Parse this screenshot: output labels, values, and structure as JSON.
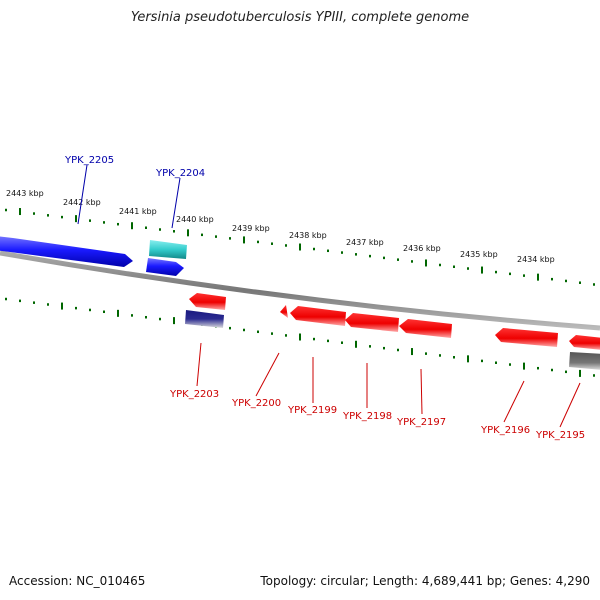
{
  "title": "Yersinia pseudotuberculosis YPIII, complete genome",
  "accession": "Accession: NC_010465",
  "topology": "Topology: circular; Length: 4,689,441 bp; Genes: 4,290",
  "colors": {
    "forward_gene": "#1a1aff",
    "reverse_gene": "#ff1a1a",
    "rna_forward": "#33cccc",
    "rna_reverse": "#1a1a80",
    "other_gene": "#666666",
    "ticks": "#006600",
    "backbone": "#777777"
  },
  "scale_ticks": [
    {
      "label": "2443 kbp"
    },
    {
      "label": "2442 kbp"
    },
    {
      "label": "2441 kbp"
    },
    {
      "label": "2440 kbp"
    },
    {
      "label": "2439 kbp"
    },
    {
      "label": "2438 kbp"
    },
    {
      "label": "2437 kbp"
    },
    {
      "label": "2436 kbp"
    },
    {
      "label": "2435 kbp"
    },
    {
      "label": "2434 kbp"
    }
  ],
  "forward_labels": [
    {
      "label": "YPK_2205"
    },
    {
      "label": "YPK_2204"
    }
  ],
  "reverse_labels": [
    {
      "label": "YPK_2203"
    },
    {
      "label": "YPK_2200"
    },
    {
      "label": "YPK_2199"
    },
    {
      "label": "YPK_2198"
    },
    {
      "label": "YPK_2197"
    },
    {
      "label": "YPK_2196"
    },
    {
      "label": "YPK_2195"
    }
  ]
}
